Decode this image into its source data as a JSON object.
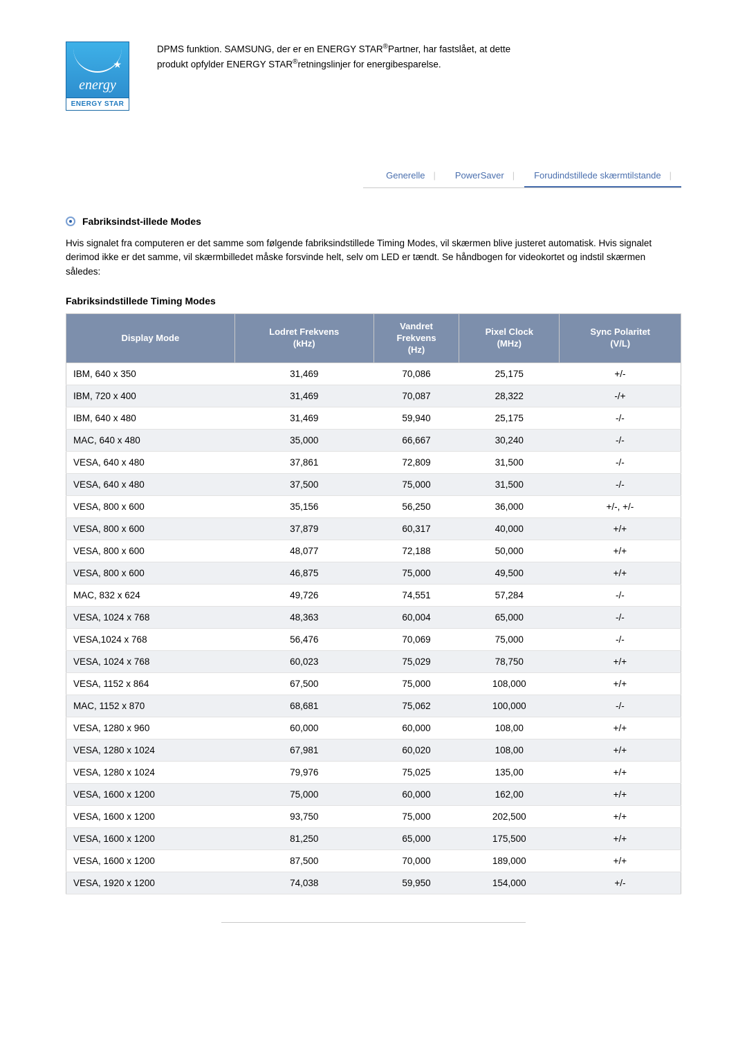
{
  "energy_star": {
    "script_word": "energy",
    "band": "ENERGY STAR"
  },
  "dpms_paragraph": {
    "line1_a": "DPMS funktion. SAMSUNG, der er en ENERGY STAR",
    "line1_b": "Partner, har",
    "line2_a": "fastslået, at dette produkt opfylder ENERGY STAR",
    "line2_b": "retningslinjer for",
    "line3": "energibesparelse."
  },
  "tabs": {
    "generelle": "Generelle",
    "powersaver": "PowerSaver",
    "forud": "Forudindstillede skærmtilstande"
  },
  "section_title": "Fabriksindst-illede Modes",
  "paragraph": "Hvis signalet fra computeren er det samme som følgende fabriksindstillede Timing Modes, vil skærmen blive justeret automatisk. Hvis signalet derimod ikke er det samme, vil skærmbilledet måske forsvinde helt, selv om LED er tændt. Se håndbogen for videokortet og indstil skærmen således:",
  "subheading": "Fabriksindstillede Timing Modes",
  "table": {
    "columns": [
      {
        "l1": "Display Mode",
        "l2": ""
      },
      {
        "l1": "Lodret Frekvens",
        "l2": "(kHz)"
      },
      {
        "l1": "Vandret",
        "l2": "Frekvens",
        "l3": "(Hz)"
      },
      {
        "l1": "Pixel Clock",
        "l2": "(MHz)"
      },
      {
        "l1": "Sync Polaritet",
        "l2": "(V/L)"
      }
    ],
    "rows": [
      [
        "IBM, 640 x 350",
        "31,469",
        "70,086",
        "25,175",
        "+/-"
      ],
      [
        "IBM, 720 x 400",
        "31,469",
        "70,087",
        "28,322",
        "-/+"
      ],
      [
        "IBM, 640 x 480",
        "31,469",
        "59,940",
        "25,175",
        "-/-"
      ],
      [
        "MAC, 640 x 480",
        "35,000",
        "66,667",
        "30,240",
        "-/-"
      ],
      [
        "VESA, 640 x 480",
        "37,861",
        "72,809",
        "31,500",
        "-/-"
      ],
      [
        "VESA, 640 x 480",
        "37,500",
        "75,000",
        "31,500",
        "-/-"
      ],
      [
        "VESA, 800 x 600",
        "35,156",
        "56,250",
        "36,000",
        "+/-, +/-"
      ],
      [
        "VESA, 800 x 600",
        "37,879",
        "60,317",
        "40,000",
        "+/+"
      ],
      [
        "VESA, 800 x 600",
        "48,077",
        "72,188",
        "50,000",
        "+/+"
      ],
      [
        "VESA, 800 x 600",
        "46,875",
        "75,000",
        "49,500",
        "+/+"
      ],
      [
        "MAC, 832 x 624",
        "49,726",
        "74,551",
        "57,284",
        "-/-"
      ],
      [
        "VESA, 1024 x 768",
        "48,363",
        "60,004",
        "65,000",
        "-/-"
      ],
      [
        "VESA,1024 x 768",
        "56,476",
        "70,069",
        "75,000",
        "-/-"
      ],
      [
        "VESA, 1024 x 768",
        "60,023",
        "75,029",
        "78,750",
        "+/+"
      ],
      [
        "VESA, 1152 x 864",
        "67,500",
        "75,000",
        "108,000",
        "+/+"
      ],
      [
        "MAC, 1152 x 870",
        "68,681",
        "75,062",
        "100,000",
        "-/-"
      ],
      [
        "VESA, 1280 x 960",
        "60,000",
        "60,000",
        "108,00",
        "+/+"
      ],
      [
        "VESA, 1280 x 1024",
        "67,981",
        "60,020",
        "108,00",
        "+/+"
      ],
      [
        "VESA, 1280 x 1024",
        "79,976",
        "75,025",
        "135,00",
        "+/+"
      ],
      [
        "VESA, 1600 x 1200",
        "75,000",
        "60,000",
        "162,00",
        "+/+"
      ],
      [
        "VESA, 1600 x 1200",
        "93,750",
        "75,000",
        "202,500",
        "+/+"
      ],
      [
        "VESA, 1600 x 1200",
        "81,250",
        "65,000",
        "175,500",
        "+/+"
      ],
      [
        "VESA, 1600 x 1200",
        "87,500",
        "70,000",
        "189,000",
        "+/+"
      ],
      [
        "VESA, 1920 x 1200",
        "74,038",
        "59,950",
        "154,000",
        "+/-"
      ]
    ],
    "header_bg": "#7d8fac",
    "header_fg": "#ffffff",
    "row_even_bg": "#eef0f3",
    "row_odd_bg": "#ffffff",
    "border_color": "#c9c9c9"
  }
}
